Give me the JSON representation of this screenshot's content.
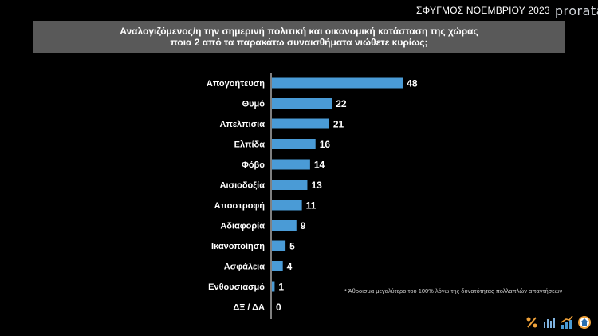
{
  "brand": {
    "survey": "ΣΦΥΓΜΟΣ ΝΟΕΜΒΡΙΟΥ 2023",
    "logo": "prorata"
  },
  "header": {
    "line1": "Αναλογιζόμενος/η την σημερινή πολιτική και οικονομική  κατάσταση της χώρας",
    "line2": "ποια 2 από τα παρακάτω  συναισθήματα νιώθετε κυρίως;"
  },
  "footnote": "* Άθροισμα μεγαλύτερο του 100% λόγω της δυνατότητας πολλαπλών απαντήσεων",
  "colors": {
    "bar": "#4a9bd6",
    "background": "#000000",
    "header_bg": "#595959",
    "axis": "#ffffff"
  },
  "icons": [
    "percent-icon",
    "bar-chart-icon",
    "trend-chart-icon",
    "house-badge-icon"
  ],
  "chart_data": {
    "type": "bar",
    "orientation": "horizontal",
    "categories": [
      "Απογοήτευση",
      "Θυμό",
      "Απελπισία",
      "Ελπίδα",
      "Φόβο",
      "Αισιοδοξία",
      "Αποστροφή",
      "Αδιαφορία",
      "Ικανοποίηση",
      "Ασφάλεια",
      "Ενθουσιασμό",
      "ΔΞ / ΔΑ"
    ],
    "values": [
      48,
      22,
      21,
      16,
      14,
      13,
      11,
      9,
      5,
      4,
      1,
      0
    ],
    "grid": false,
    "legend": "none"
  }
}
